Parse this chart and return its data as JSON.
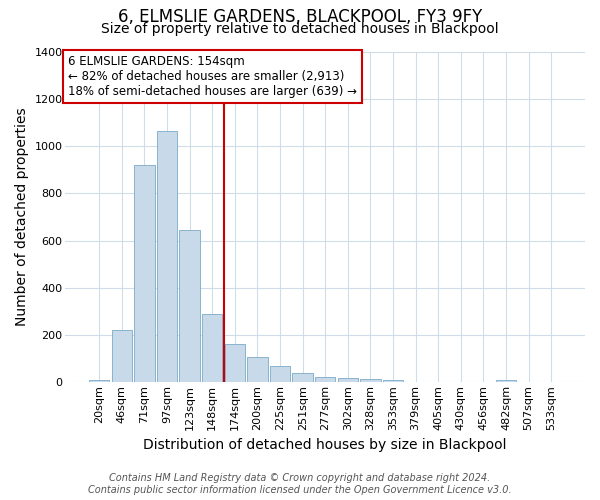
{
  "title": "6, ELMSLIE GARDENS, BLACKPOOL, FY3 9FY",
  "subtitle": "Size of property relative to detached houses in Blackpool",
  "xlabel": "Distribution of detached houses by size in Blackpool",
  "ylabel": "Number of detached properties",
  "footer_line1": "Contains HM Land Registry data © Crown copyright and database right 2024.",
  "footer_line2": "Contains public sector information licensed under the Open Government Licence v3.0.",
  "categories": [
    "20sqm",
    "46sqm",
    "71sqm",
    "97sqm",
    "123sqm",
    "148sqm",
    "174sqm",
    "200sqm",
    "225sqm",
    "251sqm",
    "277sqm",
    "302sqm",
    "328sqm",
    "353sqm",
    "379sqm",
    "405sqm",
    "430sqm",
    "456sqm",
    "482sqm",
    "507sqm",
    "533sqm"
  ],
  "values": [
    10,
    222,
    920,
    1065,
    645,
    290,
    160,
    107,
    68,
    38,
    22,
    18,
    12,
    8,
    0,
    0,
    0,
    0,
    10,
    0,
    0
  ],
  "bar_color": "#c8daea",
  "bar_edge_color": "#7aaac8",
  "highlight_index": 5,
  "highlight_color": "#cc0000",
  "annotation_title": "6 ELMSLIE GARDENS: 154sqm",
  "annotation_line1": "← 82% of detached houses are smaller (2,913)",
  "annotation_line2": "18% of semi-detached houses are larger (639) →",
  "annotation_box_color": "#ffffff",
  "annotation_box_edge_color": "#cc0000",
  "ylim": [
    0,
    1400
  ],
  "yticks": [
    0,
    200,
    400,
    600,
    800,
    1000,
    1200,
    1400
  ],
  "background_color": "#ffffff",
  "plot_background_color": "#ffffff",
  "grid_color": "#d0dce8",
  "title_fontsize": 12,
  "subtitle_fontsize": 10,
  "axis_label_fontsize": 10,
  "tick_fontsize": 8,
  "footer_fontsize": 7
}
